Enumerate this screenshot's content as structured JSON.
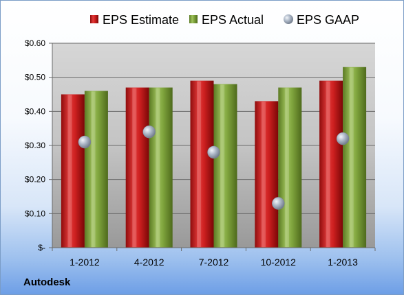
{
  "company": "Autodesk",
  "chart_data": {
    "type": "bar",
    "categories": [
      "1-2012",
      "4-2012",
      "7-2012",
      "10-2012",
      "1-2013"
    ],
    "series": [
      {
        "name": "EPS Estimate",
        "kind": "bar",
        "color": "#cc1f1f",
        "values": [
          0.45,
          0.47,
          0.49,
          0.43,
          0.49
        ]
      },
      {
        "name": "EPS Actual",
        "kind": "bar",
        "color": "#7ea33c",
        "values": [
          0.46,
          0.47,
          0.48,
          0.47,
          0.53
        ]
      },
      {
        "name": "EPS GAAP",
        "kind": "marker",
        "color": "#a9b4c4",
        "values": [
          0.31,
          0.34,
          0.28,
          0.13,
          0.32
        ]
      }
    ],
    "ylim": [
      0,
      0.6
    ],
    "yticks": [
      0,
      0.1,
      0.2,
      0.3,
      0.4,
      0.5,
      0.6
    ],
    "ytick_labels": [
      "$-",
      "$0.10",
      "$0.20",
      "$0.30",
      "$0.40",
      "$0.50",
      "$0.60"
    ],
    "grid": true,
    "legend_position": "top"
  }
}
